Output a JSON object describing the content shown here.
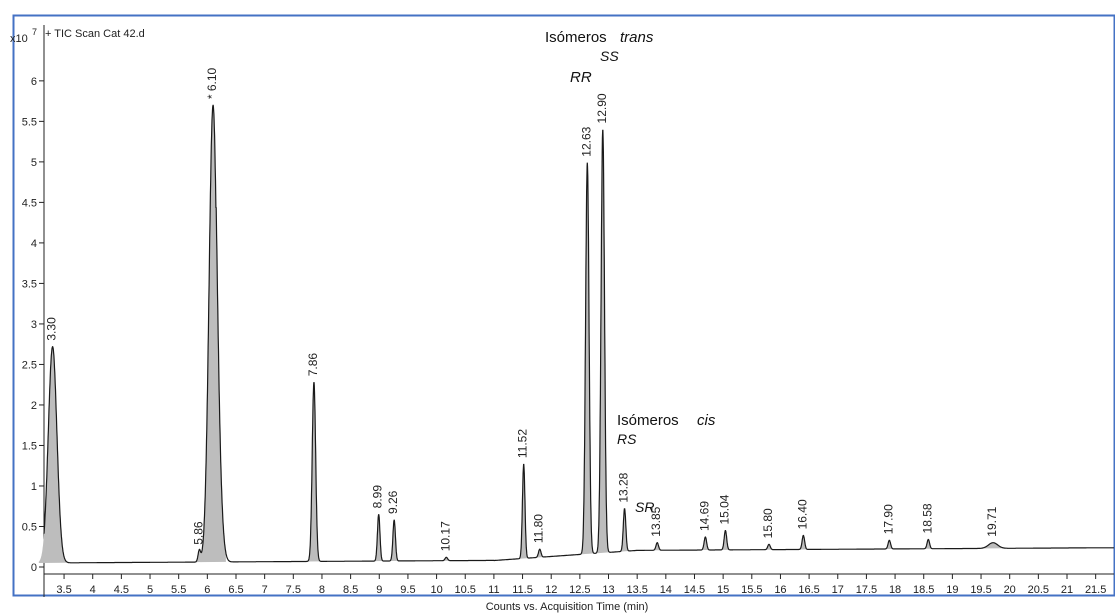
{
  "chart_data": {
    "type": "line",
    "title": "+ TIC Scan Cat 42.d",
    "y_scale_label": "x10",
    "y_scale_exp": "7",
    "xlabel": "Counts vs. Acquisition Time (min)",
    "ylabel": "",
    "xlim": [
      3.15,
      21.82
    ],
    "ylim": [
      -0.05,
      6.4
    ],
    "x_ticks": [
      3.5,
      4,
      4.5,
      5,
      5.5,
      6,
      6.5,
      7,
      7.5,
      8,
      8.5,
      9,
      9.5,
      10,
      10.5,
      11,
      11.5,
      12,
      12.5,
      13,
      13.5,
      14,
      14.5,
      15,
      15.5,
      16,
      16.5,
      17,
      17.5,
      18,
      18.5,
      19,
      19.5,
      20,
      20.5,
      21,
      21.5
    ],
    "y_ticks": [
      0,
      0.5,
      1,
      1.5,
      2,
      2.5,
      3,
      3.5,
      4,
      4.5,
      5,
      5.5,
      6
    ],
    "grid": false,
    "line_color": "#1a1a1a",
    "fill_color": "#bdbdbd",
    "frame_color": "#4472c4",
    "peaks": [
      {
        "label": "3.30",
        "rt": 3.3,
        "height": 2.72
      },
      {
        "label": "5.86",
        "rt": 5.86,
        "height": 0.2
      },
      {
        "label": "* 6.10",
        "rt": 6.1,
        "height": 5.7
      },
      {
        "label": "7.86",
        "rt": 7.86,
        "height": 2.28
      },
      {
        "label": "8.99",
        "rt": 8.99,
        "height": 0.65
      },
      {
        "label": "9.26",
        "rt": 9.26,
        "height": 0.58
      },
      {
        "label": "10.17",
        "rt": 10.17,
        "height": 0.12
      },
      {
        "label": "11.52",
        "rt": 11.52,
        "height": 1.27
      },
      {
        "label": "11.80",
        "rt": 11.8,
        "height": 0.22
      },
      {
        "label": "12.63",
        "rt": 12.63,
        "height": 4.99
      },
      {
        "label": "12.90",
        "rt": 12.9,
        "height": 5.4
      },
      {
        "label": "13.28",
        "rt": 13.28,
        "height": 0.72
      },
      {
        "label": "13.85",
        "rt": 13.85,
        "height": 0.3
      },
      {
        "label": "14.69",
        "rt": 14.69,
        "height": 0.37
      },
      {
        "label": "15.04",
        "rt": 15.04,
        "height": 0.45
      },
      {
        "label": "15.80",
        "rt": 15.8,
        "height": 0.28
      },
      {
        "label": "16.40",
        "rt": 16.4,
        "height": 0.39
      },
      {
        "label": "17.90",
        "rt": 17.9,
        "height": 0.33
      },
      {
        "label": "18.58",
        "rt": 18.58,
        "height": 0.34
      },
      {
        "label": "19.71",
        "rt": 19.71,
        "height": 0.3
      }
    ],
    "annotations": {
      "trans_title": "Isómeros",
      "trans_word": "trans",
      "rr": "RR",
      "ss": "SS",
      "cis_title": "Isómeros",
      "cis_word": "cis",
      "rs": "RS",
      "sr": "SR"
    }
  }
}
